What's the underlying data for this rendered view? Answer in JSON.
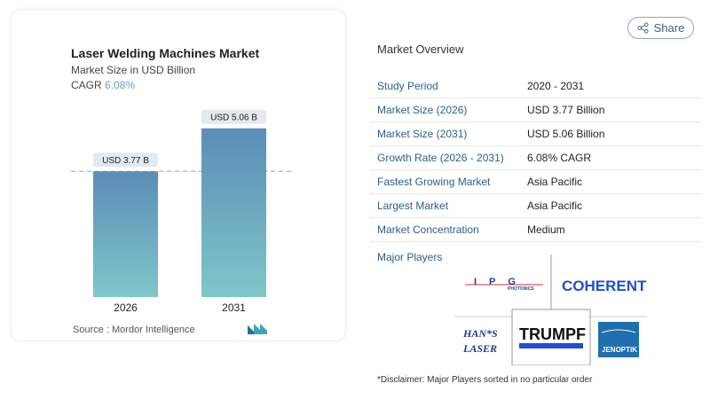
{
  "header": {
    "share_label": "Share"
  },
  "card": {
    "title": "Laser Welding Machines Market",
    "subtitle": "Market Size in USD Billion",
    "cagr_label": "CAGR",
    "cagr_value": "6.08%",
    "source": "Source :  Mordor Intelligence"
  },
  "chart_data": {
    "type": "bar",
    "categories": [
      "2026",
      "2031"
    ],
    "values": [
      3.77,
      5.06
    ],
    "data_labels": [
      "USD 3.77 B",
      "USD 5.06 B"
    ],
    "ylabel": "",
    "reference_line": 3.77,
    "colors": {
      "bar_top": "#5b8db8",
      "bar_bottom": "#7fc6c8"
    }
  },
  "overview": {
    "title": "Market Overview",
    "rows": [
      {
        "key": "Study Period",
        "value": "2020 - 2031"
      },
      {
        "key": "Market Size (2026)",
        "value": "USD 3.77 Billion"
      },
      {
        "key": "Market Size (2031)",
        "value": "USD 5.06 Billion"
      },
      {
        "key": "Growth Rate (2026 - 2031)",
        "value": "6.08% CAGR"
      },
      {
        "key": "Fastest Growing Market",
        "value": "Asia Pacific"
      },
      {
        "key": "Largest Market",
        "value": "Asia Pacific"
      },
      {
        "key": "Market Concentration",
        "value": "Medium"
      }
    ],
    "major_players_label": "Major Players",
    "players": [
      "IPG Photonics",
      "Coherent",
      "Han's Laser",
      "TRUMPF",
      "Jenoptik"
    ],
    "disclaimer": "*Disclaimer: Major Players sorted in no particular order"
  }
}
